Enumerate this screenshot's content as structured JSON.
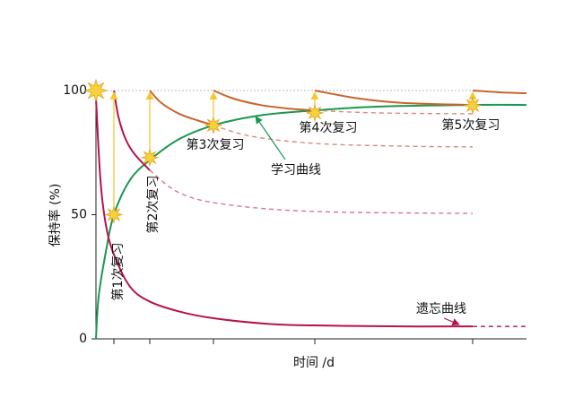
{
  "chart_data": {
    "type": "line",
    "ylabel": "保持率 (%)",
    "xlabel": "时间 /d",
    "xlim": [
      0,
      24
    ],
    "ylim": [
      0,
      100
    ],
    "yticks": [
      0,
      50,
      100
    ],
    "reference_line": 100,
    "reviews": {
      "color": "#f5d33a",
      "x": [
        0,
        1,
        3,
        6.55,
        12.2,
        21
      ],
      "values": [
        100,
        50,
        73,
        86,
        91,
        94
      ]
    },
    "series": [
      {
        "color": "#1a9850",
        "x": [
          0,
          0.15,
          0.55,
          1,
          1.9,
          3,
          4.65,
          6.55,
          9.15,
          12.2,
          15.65,
          21,
          24
        ],
        "values": [
          0,
          17,
          35,
          50,
          64,
          72,
          80.5,
          86,
          90,
          92,
          93.5,
          94.2,
          94.2
        ]
      },
      {
        "color": "#b5124e",
        "x": [
          0,
          0.25,
          0.55,
          1,
          1.9,
          3,
          4.65,
          6.55,
          9.65,
          12.2,
          17.15,
          21
        ],
        "values": [
          97,
          64,
          46,
          34,
          21,
          15,
          11,
          8.3,
          6,
          5.4,
          5,
          5
        ]
      },
      {
        "color": "#b5124e",
        "dashed": true,
        "x": [
          21,
          24
        ],
        "values": [
          5,
          5
        ]
      },
      {
        "color": "#b5124e",
        "x": [
          1,
          1.25,
          1.65,
          2.15,
          3
        ],
        "values": [
          100,
          89.5,
          80.5,
          74.4,
          67.9
        ]
      },
      {
        "color": "#d4788a",
        "dashed": true,
        "x": [
          3,
          4.65,
          7.15,
          12.15,
          21
        ],
        "values": [
          67.9,
          58.8,
          54.2,
          51.3,
          50.5
        ]
      },
      {
        "color": "#c9632c",
        "x": [
          3,
          3.65,
          4.65,
          5.65,
          6.55
        ],
        "values": [
          100,
          95,
          90.6,
          88,
          86
        ]
      },
      {
        "color": "#d98a7a",
        "dashed": true,
        "x": [
          6.55,
          8.65,
          12.2,
          17.15,
          21
        ],
        "values": [
          86,
          81.6,
          78.7,
          77.6,
          77.3
        ]
      },
      {
        "color": "#c9632c",
        "x": [
          6.55,
          7.65,
          9.15,
          10.65,
          12.2
        ],
        "values": [
          100,
          96.8,
          94.2,
          92.8,
          92
        ]
      },
      {
        "color": "#d98a7a",
        "dashed": true,
        "x": [
          12.2,
          15.65,
          21
        ],
        "values": [
          92,
          91,
          90.6
        ]
      },
      {
        "color": "#c9632c",
        "x": [
          12.2,
          14.65,
          17.15,
          21
        ],
        "values": [
          100,
          96.8,
          95,
          94.2
        ]
      },
      {
        "color": "#c9632c",
        "x": [
          21,
          22.5,
          24
        ],
        "values": [
          100,
          99.3,
          98.9
        ]
      }
    ],
    "annotations": [
      "第1次复习",
      "第2次复习",
      "第3次复习",
      "第4次复习",
      "第5次复习",
      "学习曲线",
      "遗忘曲线"
    ]
  }
}
